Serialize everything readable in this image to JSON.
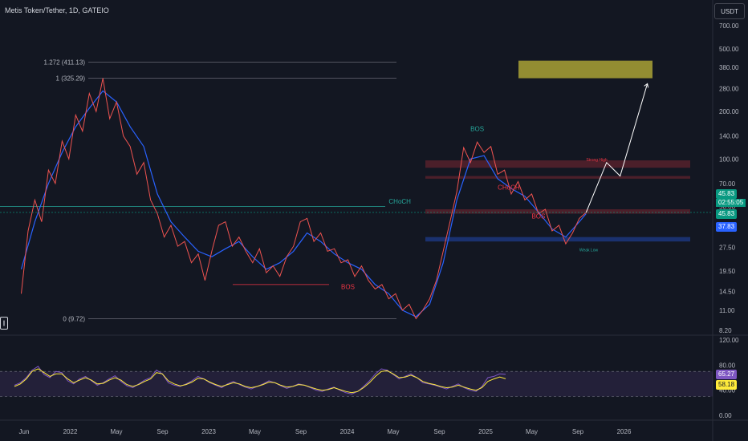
{
  "header": {
    "title": "Metis Token/Tether, 1D, GATEIO",
    "currency": "USDT"
  },
  "price_tags": {
    "last": "45.83",
    "countdown": "02:55:05",
    "ema": "45.83",
    "support": "37.83",
    "rsi": "65.27",
    "rsi_ma": "58.18"
  },
  "fib_levels": [
    {
      "label": "1.272 (411.13)",
      "value": 411.13
    },
    {
      "label": "1 (325.29)",
      "value": 325.29
    },
    {
      "label": "0 (9.72)",
      "value": 9.72
    }
  ],
  "annotations": [
    {
      "text": "BOS",
      "color": "#26a69a"
    },
    {
      "text": "CHoCH",
      "color": "#26a69a"
    },
    {
      "text": "CHoCH",
      "color": "#f23645"
    },
    {
      "text": "BOS",
      "color": "#f23645"
    },
    {
      "text": "BOS",
      "color": "#f23645"
    },
    {
      "text": "Weak Low",
      "color": "#26a69a"
    },
    {
      "text": "Strong High",
      "color": "#f23645"
    }
  ],
  "chart_data": [
    {
      "type": "line",
      "panel": "price",
      "scale": "log",
      "ylim": [
        8.2,
        700
      ],
      "yticks": [
        700,
        500,
        380,
        280,
        200,
        140,
        100,
        70,
        50,
        37.5,
        27.5,
        19.5,
        14.5,
        11,
        8.2
      ],
      "ytick_labels": [
        "700.00",
        "500.00",
        "380.00",
        "280.00",
        "200.00",
        "140.00",
        "100.00",
        "70.00",
        "50.00",
        "37.50",
        "27.50",
        "19.50",
        "14.50",
        "11.00",
        "8.20"
      ],
      "x_labels": [
        "Jun",
        "2022",
        "May",
        "Sep",
        "2023",
        "May",
        "Sep",
        "2024",
        "May",
        "Sep",
        "2025",
        "May",
        "Sep",
        "2026"
      ],
      "series": [
        {
          "color": "#2962ff",
          "points": [
            [
              1,
              20
            ],
            [
              3,
              40
            ],
            [
              5,
              70
            ],
            [
              7,
              110
            ],
            [
              9,
              160
            ],
            [
              11,
              210
            ],
            [
              13,
              270
            ],
            [
              15,
              230
            ],
            [
              17,
              160
            ],
            [
              19,
              120
            ],
            [
              21,
              60
            ],
            [
              23,
              40
            ],
            [
              25,
              32
            ],
            [
              27,
              26
            ],
            [
              29,
              24
            ],
            [
              31,
              27
            ],
            [
              33,
              30
            ],
            [
              35,
              24
            ],
            [
              37,
              20
            ],
            [
              39,
              22
            ],
            [
              41,
              26
            ],
            [
              43,
              34
            ],
            [
              45,
              30
            ],
            [
              47,
              25
            ],
            [
              49,
              22
            ],
            [
              51,
              20
            ],
            [
              53,
              16
            ],
            [
              55,
              14
            ],
            [
              57,
              11
            ],
            [
              59,
              10
            ],
            [
              61,
              12
            ],
            [
              63,
              22
            ],
            [
              65,
              55
            ],
            [
              67,
              100
            ],
            [
              69,
              105
            ],
            [
              71,
              75
            ],
            [
              73,
              65
            ],
            [
              75,
              58
            ],
            [
              77,
              46
            ],
            [
              79,
              36
            ],
            [
              81,
              32
            ],
            [
              83,
              40
            ],
            [
              84,
              45
            ]
          ]
        },
        {
          "color": "#ef5350",
          "points": [
            [
              1,
              14
            ],
            [
              2,
              35
            ],
            [
              3,
              55
            ],
            [
              4,
              40
            ],
            [
              5,
              85
            ],
            [
              6,
              70
            ],
            [
              7,
              130
            ],
            [
              8,
              100
            ],
            [
              9,
              190
            ],
            [
              10,
              150
            ],
            [
              11,
              260
            ],
            [
              12,
              200
            ],
            [
              13,
              325
            ],
            [
              14,
              180
            ],
            [
              15,
              230
            ],
            [
              16,
              140
            ],
            [
              17,
              120
            ],
            [
              18,
              80
            ],
            [
              19,
              95
            ],
            [
              20,
              55
            ],
            [
              21,
              45
            ],
            [
              22,
              32
            ],
            [
              23,
              38
            ],
            [
              24,
              28
            ],
            [
              25,
              30
            ],
            [
              26,
              22
            ],
            [
              27,
              25
            ],
            [
              28,
              17
            ],
            [
              29,
              26
            ],
            [
              30,
              38
            ],
            [
              31,
              40
            ],
            [
              32,
              28
            ],
            [
              33,
              32
            ],
            [
              34,
              26
            ],
            [
              35,
              22
            ],
            [
              36,
              27
            ],
            [
              37,
              19
            ],
            [
              38,
              21
            ],
            [
              39,
              18
            ],
            [
              40,
              24
            ],
            [
              41,
              28
            ],
            [
              42,
              40
            ],
            [
              43,
              42
            ],
            [
              44,
              30
            ],
            [
              45,
              34
            ],
            [
              46,
              26
            ],
            [
              47,
              27
            ],
            [
              48,
              22
            ],
            [
              49,
              23
            ],
            [
              50,
              18
            ],
            [
              51,
              21
            ],
            [
              52,
              17
            ],
            [
              53,
              15
            ],
            [
              54,
              16
            ],
            [
              55,
              13
            ],
            [
              56,
              14
            ],
            [
              57,
              11
            ],
            [
              58,
              12
            ],
            [
              59,
              9.72
            ],
            [
              60,
              11
            ],
            [
              61,
              13
            ],
            [
              62,
              17
            ],
            [
              63,
              26
            ],
            [
              64,
              40
            ],
            [
              65,
              62
            ],
            [
              66,
              118
            ],
            [
              67,
              95
            ],
            [
              68,
              128
            ],
            [
              69,
              110
            ],
            [
              70,
              120
            ],
            [
              71,
              80
            ],
            [
              72,
              85
            ],
            [
              73,
              60
            ],
            [
              74,
              72
            ],
            [
              75,
              55
            ],
            [
              76,
              60
            ],
            [
              77,
              45
            ],
            [
              78,
              48
            ],
            [
              79,
              35
            ],
            [
              80,
              38
            ],
            [
              81,
              29
            ],
            [
              82,
              34
            ],
            [
              83,
              42
            ],
            [
              84,
              45.83
            ]
          ]
        }
      ],
      "target_zone": {
        "from": 325,
        "to": 420
      },
      "zones": [
        {
          "from": 88,
          "to": 98,
          "color": "red"
        },
        {
          "from": 75,
          "to": 78,
          "color": "red"
        },
        {
          "from": 45,
          "to": 48,
          "color": "red"
        },
        {
          "from": 30,
          "to": 32,
          "color": "blue"
        }
      ],
      "projection": [
        [
          84,
          45.83
        ],
        [
          87,
          95
        ],
        [
          89,
          78
        ],
        [
          93,
          300
        ]
      ]
    },
    {
      "type": "line",
      "panel": "rsi",
      "ylim": [
        0,
        120
      ],
      "yticks": [
        120,
        80,
        40,
        0
      ],
      "ytick_labels": [
        "120.00",
        "80.00",
        "40.00",
        "0.00"
      ],
      "band": [
        30,
        70
      ],
      "series": [
        {
          "color": "#7e57c2",
          "values": [
            48,
            52,
            60,
            72,
            78,
            65,
            60,
            70,
            68,
            55,
            50,
            58,
            62,
            55,
            48,
            52,
            58,
            63,
            54,
            47,
            44,
            50,
            56,
            60,
            72,
            66,
            52,
            48,
            46,
            50,
            55,
            62,
            58,
            52,
            48,
            44,
            50,
            54,
            49,
            45,
            42,
            46,
            50,
            55,
            52,
            47,
            43,
            46,
            50,
            48,
            44,
            40,
            38,
            42,
            45,
            40,
            36,
            34,
            38,
            46,
            55,
            66,
            74,
            72,
            65,
            58,
            62,
            66,
            60,
            52,
            50,
            48,
            45,
            42,
            46,
            50,
            44,
            40,
            38,
            46,
            60,
            62,
            66,
            65.27
          ]
        },
        {
          "color": "#ffeb3b",
          "values": [
            46,
            50,
            58,
            70,
            74,
            68,
            62,
            66,
            66,
            58,
            52,
            56,
            60,
            56,
            50,
            51,
            56,
            60,
            56,
            49,
            46,
            49,
            54,
            58,
            68,
            66,
            55,
            50,
            47,
            49,
            53,
            59,
            58,
            53,
            49,
            46,
            49,
            52,
            50,
            46,
            44,
            46,
            49,
            53,
            52,
            48,
            45,
            46,
            49,
            48,
            45,
            42,
            40,
            41,
            44,
            41,
            38,
            36,
            38,
            44,
            52,
            62,
            70,
            71,
            66,
            60,
            61,
            64,
            60,
            54,
            51,
            49,
            46,
            44,
            45,
            48,
            45,
            42,
            40,
            44,
            54,
            58,
            61,
            58.18
          ]
        }
      ]
    }
  ]
}
